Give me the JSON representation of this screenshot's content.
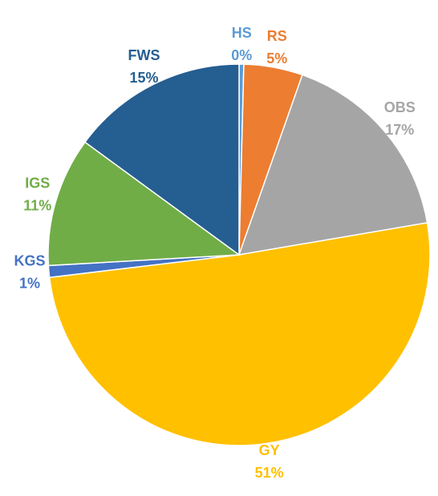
{
  "chart_data": {
    "type": "pie",
    "categories": [
      "HS",
      "RS",
      "OBS",
      "GY",
      "KGS",
      "IGS",
      "FWS"
    ],
    "values": [
      0.4,
      5,
      17,
      51,
      1,
      11,
      15
    ],
    "value_labels": [
      "0%",
      "5%",
      "17%",
      "51%",
      "1%",
      "11%",
      "15%"
    ],
    "colors": [
      "#5b9bd5",
      "#ed7d31",
      "#a5a5a5",
      "#ffc000",
      "#4472c4",
      "#70ad47",
      "#255e91"
    ]
  }
}
